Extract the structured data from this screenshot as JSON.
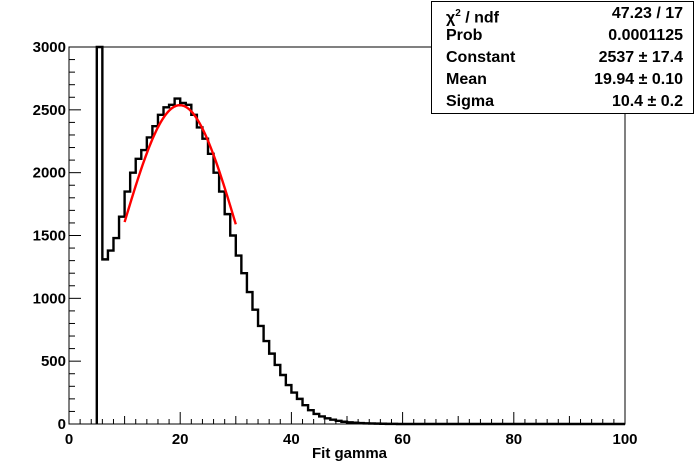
{
  "chart_data": {
    "type": "histogram",
    "xlabel": "Fit gamma",
    "xlim": [
      0,
      100
    ],
    "ylim": [
      0,
      3000
    ],
    "x_ticks": [
      0,
      20,
      40,
      60,
      80,
      100
    ],
    "y_ticks": [
      0,
      500,
      1000,
      1500,
      2000,
      2500,
      3000
    ],
    "bin_width": 1,
    "bins_start": 5,
    "values": [
      3000,
      1310,
      1380,
      1480,
      1650,
      1850,
      2000,
      2110,
      2180,
      2280,
      2370,
      2460,
      2520,
      2540,
      2590,
      2555,
      2540,
      2460,
      2360,
      2270,
      2150,
      2000,
      1850,
      1670,
      1500,
      1340,
      1200,
      1050,
      910,
      780,
      660,
      560,
      470,
      390,
      310,
      250,
      200,
      150,
      110,
      80,
      60,
      45,
      34,
      25,
      18,
      13,
      10,
      7,
      5,
      4,
      3,
      2,
      1,
      1,
      0
    ],
    "fit": {
      "color": "#ff0000",
      "x_range": [
        10,
        30
      ],
      "constant": 2537,
      "mean": 19.94,
      "sigma": 10.4
    }
  },
  "stats": [
    {
      "label_main": "χ",
      "label_sup": "2",
      "label_rest": " / ndf",
      "value": "47.23 / 17"
    },
    {
      "label_main": "Prob",
      "label_sup": "",
      "label_rest": "",
      "value": "0.0001125"
    },
    {
      "label_main": "Constant",
      "label_sup": "",
      "label_rest": "",
      "value": "2537 ± 17.4"
    },
    {
      "label_main": "Mean",
      "label_sup": "",
      "label_rest": "",
      "value": "19.94 ± 0.10"
    },
    {
      "label_main": "Sigma",
      "label_sup": "",
      "label_rest": "",
      "value": "10.4 ± 0.2"
    }
  ]
}
